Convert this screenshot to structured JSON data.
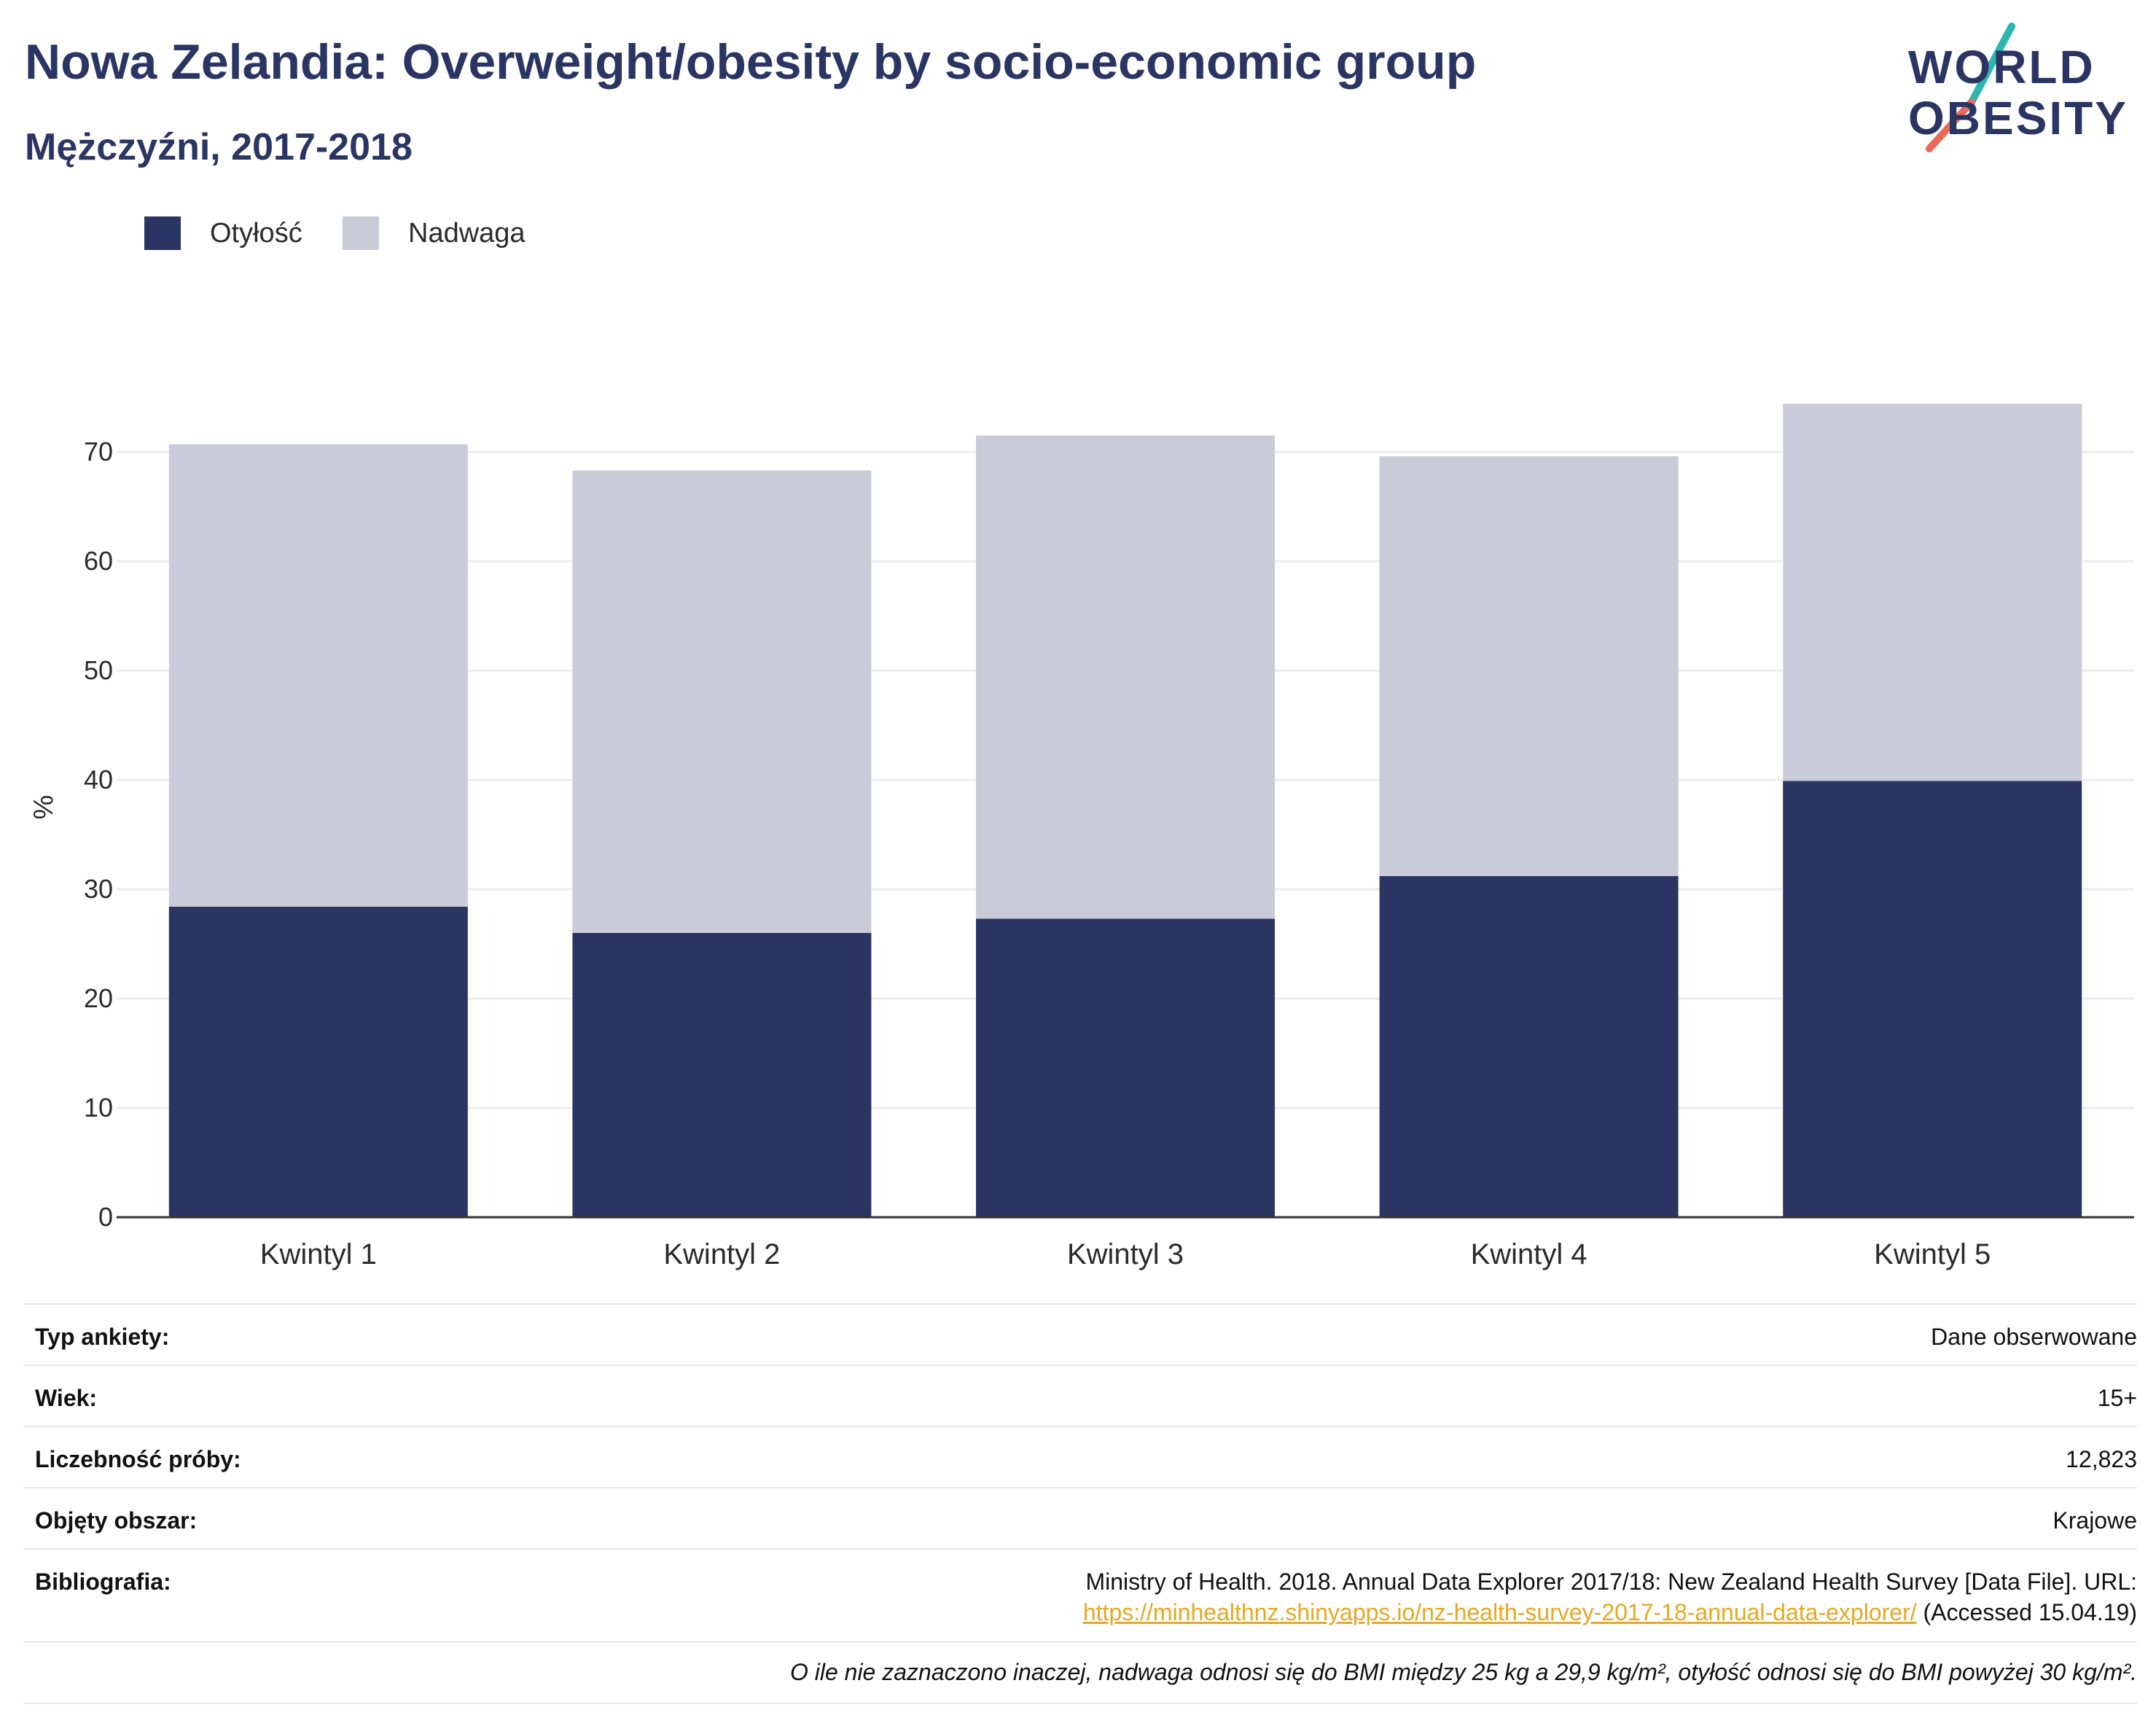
{
  "header": {
    "title": "Nowa Zelandia: Overweight/obesity by socio-economic group",
    "subtitle": "Mężczyźni, 2017-2018"
  },
  "logo": {
    "line1": "WORLD",
    "line2": "OBESITY",
    "slash_top_color": "#2bb6b1",
    "slash_bottom_color": "#ea6a5b"
  },
  "legend": {
    "items": [
      {
        "label": "Otyłość",
        "color": "#2a3563"
      },
      {
        "label": "Nadwaga",
        "color": "#c9ccd8"
      }
    ]
  },
  "chart_data": {
    "type": "bar",
    "stacked": true,
    "categories": [
      "Kwintyl 1",
      "Kwintyl 2",
      "Kwintyl 3",
      "Kwintyl 4",
      "Kwintyl 5"
    ],
    "series": [
      {
        "name": "Otyłość",
        "color": "#2a3563",
        "values": [
          28.4,
          26.0,
          27.3,
          31.2,
          39.9
        ]
      },
      {
        "name": "Nadwaga",
        "color": "#c9ccd8",
        "values": [
          42.3,
          42.3,
          44.2,
          38.4,
          34.5
        ]
      }
    ],
    "ylabel": "%",
    "xlabel": "",
    "ylim": [
      0,
      75
    ],
    "yticks": [
      0,
      10,
      20,
      30,
      40,
      50,
      60,
      70
    ],
    "grid": true,
    "legend_position": "top-left"
  },
  "meta": {
    "rows": [
      {
        "key": "Typ ankiety:",
        "value": "Dane obserwowane"
      },
      {
        "key": "Wiek:",
        "value": "15+"
      },
      {
        "key": "Liczebność próby:",
        "value": "12,823"
      },
      {
        "key": "Objęty obszar:",
        "value": "Krajowe"
      }
    ],
    "bibliography": {
      "key": "Bibliografia:",
      "line1": "Ministry of Health. 2018. Annual Data Explorer 2017/18: New Zealand Health Survey [Data File]. URL:",
      "link": "https://minhealthnz.shinyapps.io/nz-health-survey-2017-18-annual-data-explorer/",
      "after_link": " (Accessed 15.04.19)"
    },
    "footnote": "O ile nie zaznaczono inaczej, nadwaga odnosi się do BMI między 25 kg a 29,9 kg/m², otyłość odnosi się do BMI powyżej 30 kg/m²."
  }
}
